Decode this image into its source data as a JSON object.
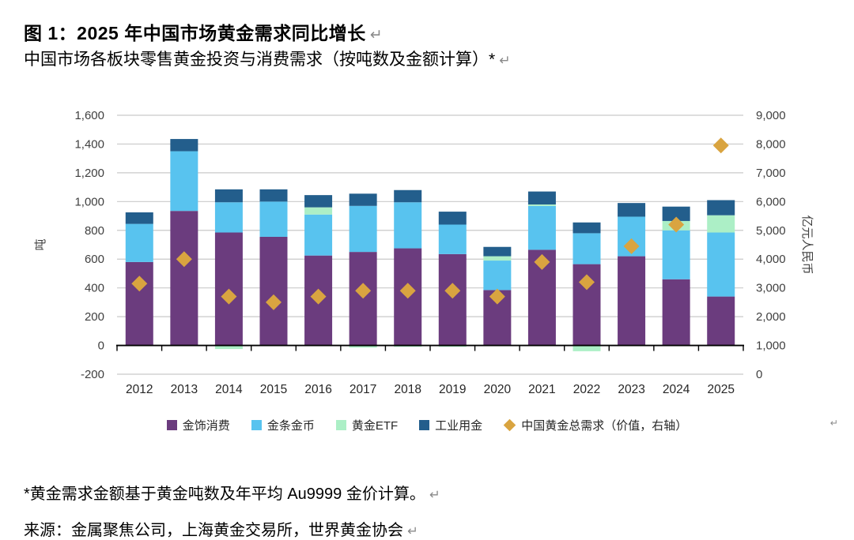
{
  "title": "图 1：2025 年中国市场黄金需求同比增长",
  "subtitle": "中国市场各板块零售黄金投资与消费需求（按吨数及金额计算）*",
  "paragraph_mark": "↵",
  "footnote": "*黄金需求金额基于黄金吨数及年平均 Au9999 金价计算。",
  "source": "来源：金属聚焦公司，上海黄金交易所，世界黄金协会",
  "colors": {
    "grid": "#c9c9c9",
    "axis_line": "#000000",
    "tick_text": "#3f3f3f",
    "paragraph_mark": "#8a8a8a"
  },
  "chart_data": {
    "type": "bar",
    "subtype": "stacked-column-with-scatter-overlay",
    "grid": true,
    "legend_position": "bottom",
    "categories": [
      "2012",
      "2013",
      "2014",
      "2015",
      "2016",
      "2017",
      "2018",
      "2019",
      "2020",
      "2021",
      "2022",
      "2023",
      "2024",
      "2025"
    ],
    "series": [
      {
        "name": "金饰消费",
        "color": "#6B3C7E",
        "values": [
          580,
          935,
          785,
          755,
          625,
          650,
          675,
          635,
          385,
          665,
          565,
          620,
          460,
          340
        ]
      },
      {
        "name": "金条金币",
        "color": "#58C3EF",
        "values": [
          265,
          415,
          210,
          245,
          285,
          320,
          320,
          205,
          205,
          305,
          215,
          275,
          340,
          445
        ]
      },
      {
        "name": "黄金ETF",
        "color": "#ACEFC6",
        "values": [
          0,
          0,
          -25,
          0,
          50,
          -15,
          -10,
          -10,
          30,
          10,
          -40,
          0,
          65,
          120
        ]
      },
      {
        "name": "工业用金",
        "color": "#235E8C",
        "values": [
          80,
          85,
          90,
          85,
          85,
          85,
          85,
          90,
          65,
          90,
          75,
          95,
          100,
          105
        ]
      }
    ],
    "scatter": {
      "name": "中国黄金总需求（价值，右轴）",
      "color": "#D9A440",
      "axis": "right",
      "values": [
        3150,
        4000,
        2700,
        2500,
        2700,
        2900,
        2900,
        2900,
        2700,
        3900,
        3200,
        4450,
        5200,
        7950
      ]
    },
    "left_axis": {
      "title": "吨",
      "min": -200,
      "max": 1600,
      "step": 200,
      "tick_labels": [
        "1,600",
        "1,400",
        "1,200",
        "1,000",
        "800",
        "600",
        "400",
        "200",
        "0",
        "-200"
      ]
    },
    "right_axis": {
      "title": "亿元人民币",
      "min": 0,
      "max": 9000,
      "step": 1000,
      "tick_labels": [
        "9,000",
        "8,000",
        "7,000",
        "6,000",
        "5,000",
        "4,000",
        "3,000",
        "2,000",
        "1,000",
        "0"
      ]
    }
  }
}
